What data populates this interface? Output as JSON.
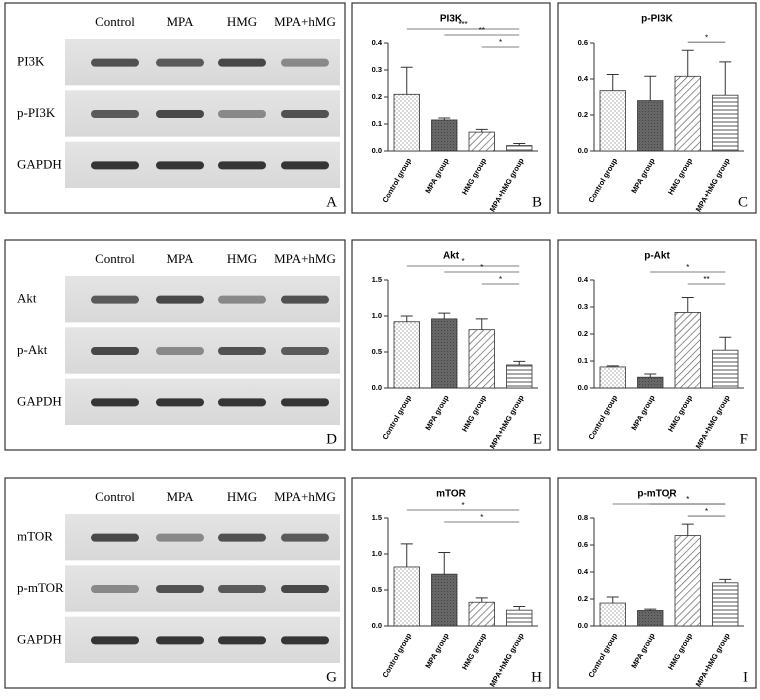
{
  "blots": [
    {
      "letter": "A",
      "lanes": [
        "Control",
        "MPA",
        "HMG",
        "MPA+hMG"
      ],
      "rows": [
        "PI3K",
        "p-PI3K",
        "GAPDH"
      ]
    },
    {
      "letter": "D",
      "lanes": [
        "Control",
        "MPA",
        "HMG",
        "MPA+hMG"
      ],
      "rows": [
        "Akt",
        "p-Akt",
        "GAPDH"
      ]
    },
    {
      "letter": "G",
      "lanes": [
        "Control",
        "MPA",
        "HMG",
        "MPA+hMG"
      ],
      "rows": [
        "mTOR",
        "p-mTOR",
        "GAPDH"
      ]
    }
  ],
  "chart_data": [
    {
      "type": "bar",
      "title": "PI3K",
      "letter": "B",
      "categories": [
        "Control group",
        "MPA group",
        "HMG group",
        "MPA+hMG group"
      ],
      "values": [
        0.21,
        0.115,
        0.07,
        0.02
      ],
      "errors": [
        0.1,
        0.007,
        0.01,
        0.008
      ],
      "ylim": [
        0,
        0.4
      ],
      "yticks": [
        {
          "value": 0,
          "label": "0.0"
        },
        {
          "value": 0.1,
          "label": "0.1"
        },
        {
          "value": 0.2,
          "label": "0.2"
        },
        {
          "value": 0.3,
          "label": "0.3"
        },
        {
          "value": 0.4,
          "label": "0.4"
        }
      ],
      "significance": [
        {
          "from": "Control group",
          "to": "MPA+hMG group",
          "label": "***"
        },
        {
          "from": "MPA group",
          "to": "MPA+hMG group",
          "label": "**"
        },
        {
          "from": "HMG group",
          "to": "MPA+hMG group",
          "label": "*"
        }
      ]
    },
    {
      "type": "bar",
      "title": "p-PI3K",
      "letter": "C",
      "categories": [
        "Control group",
        "MPA group",
        "HMG group",
        "MPA+hMG group"
      ],
      "values": [
        0.335,
        0.28,
        0.415,
        0.31
      ],
      "errors": [
        0.09,
        0.135,
        0.145,
        0.185
      ],
      "ylim": [
        0,
        0.6
      ],
      "yticks": [
        {
          "value": 0,
          "label": "0.0"
        },
        {
          "value": 0.2,
          "label": "0.2"
        },
        {
          "value": 0.4,
          "label": "0.4"
        },
        {
          "value": 0.6,
          "label": "0.6"
        }
      ],
      "significance": [
        {
          "from": "HMG group",
          "to": "MPA+hMG group",
          "label": "*"
        }
      ]
    },
    {
      "type": "bar",
      "title": "Akt",
      "letter": "E",
      "categories": [
        "Control group",
        "MPA group",
        "HMG group",
        "MPA+hMG group"
      ],
      "values": [
        0.92,
        0.96,
        0.81,
        0.32
      ],
      "errors": [
        0.08,
        0.08,
        0.15,
        0.05
      ],
      "ylim": [
        0,
        1.5
      ],
      "yticks": [
        {
          "value": 0,
          "label": "0.0"
        },
        {
          "value": 0.5,
          "label": "0.5"
        },
        {
          "value": 1,
          "label": "1.0"
        },
        {
          "value": 1.5,
          "label": "1.5"
        }
      ],
      "significance": [
        {
          "from": "Control group",
          "to": "MPA+hMG group",
          "label": "*"
        },
        {
          "from": "MPA group",
          "to": "MPA+hMG group",
          "label": "*"
        },
        {
          "from": "HMG group",
          "to": "MPA+hMG group",
          "label": "*"
        }
      ]
    },
    {
      "type": "bar",
      "title": "p-Akt",
      "letter": "F",
      "categories": [
        "Control group",
        "MPA group",
        "HMG group",
        "MPA+hMG group"
      ],
      "values": [
        0.078,
        0.04,
        0.28,
        0.14
      ],
      "errors": [
        0.004,
        0.012,
        0.055,
        0.048
      ],
      "ylim": [
        0,
        0.4
      ],
      "yticks": [
        {
          "value": 0,
          "label": "0.0"
        },
        {
          "value": 0.1,
          "label": "0.1"
        },
        {
          "value": 0.2,
          "label": "0.2"
        },
        {
          "value": 0.3,
          "label": "0.3"
        },
        {
          "value": 0.4,
          "label": "0.4"
        }
      ],
      "significance": [
        {
          "from": "MPA group",
          "to": "MPA+hMG group",
          "label": "*"
        },
        {
          "from": "HMG group",
          "to": "MPA+hMG group",
          "label": "**"
        }
      ]
    },
    {
      "type": "bar",
      "title": "mTOR",
      "letter": "H",
      "categories": [
        "Control group",
        "MPA group",
        "HMG group",
        "MPA+hMG group"
      ],
      "values": [
        0.82,
        0.72,
        0.33,
        0.22
      ],
      "errors": [
        0.32,
        0.3,
        0.06,
        0.05
      ],
      "ylim": [
        0,
        1.5
      ],
      "yticks": [
        {
          "value": 0,
          "label": "0.0"
        },
        {
          "value": 0.5,
          "label": "0.5"
        },
        {
          "value": 1,
          "label": "1.0"
        },
        {
          "value": 1.5,
          "label": "1.5"
        }
      ],
      "significance": [
        {
          "from": "Control group",
          "to": "MPA+hMG group",
          "label": "*"
        },
        {
          "from": "MPA group",
          "to": "MPA+hMG group",
          "label": "*"
        }
      ]
    },
    {
      "type": "bar",
      "title": "p-mTOR",
      "letter": "I",
      "categories": [
        "Control group",
        "MPA group",
        "HMG group",
        "MPA+hMG group"
      ],
      "values": [
        0.17,
        0.115,
        0.67,
        0.32
      ],
      "errors": [
        0.045,
        0.01,
        0.085,
        0.025
      ],
      "ylim": [
        0,
        0.8
      ],
      "yticks": [
        {
          "value": 0,
          "label": "0.0"
        },
        {
          "value": 0.2,
          "label": "0.2"
        },
        {
          "value": 0.4,
          "label": "0.4"
        },
        {
          "value": 0.6,
          "label": "0.6"
        },
        {
          "value": 0.8,
          "label": "0.8"
        }
      ],
      "significance": [
        {
          "from": "Control group",
          "to": "MPA+hMG group",
          "label": "*"
        },
        {
          "from": "MPA group",
          "to": "MPA+hMG group",
          "label": "*"
        },
        {
          "from": "HMG group",
          "to": "MPA+hMG group",
          "label": "*"
        }
      ]
    }
  ]
}
